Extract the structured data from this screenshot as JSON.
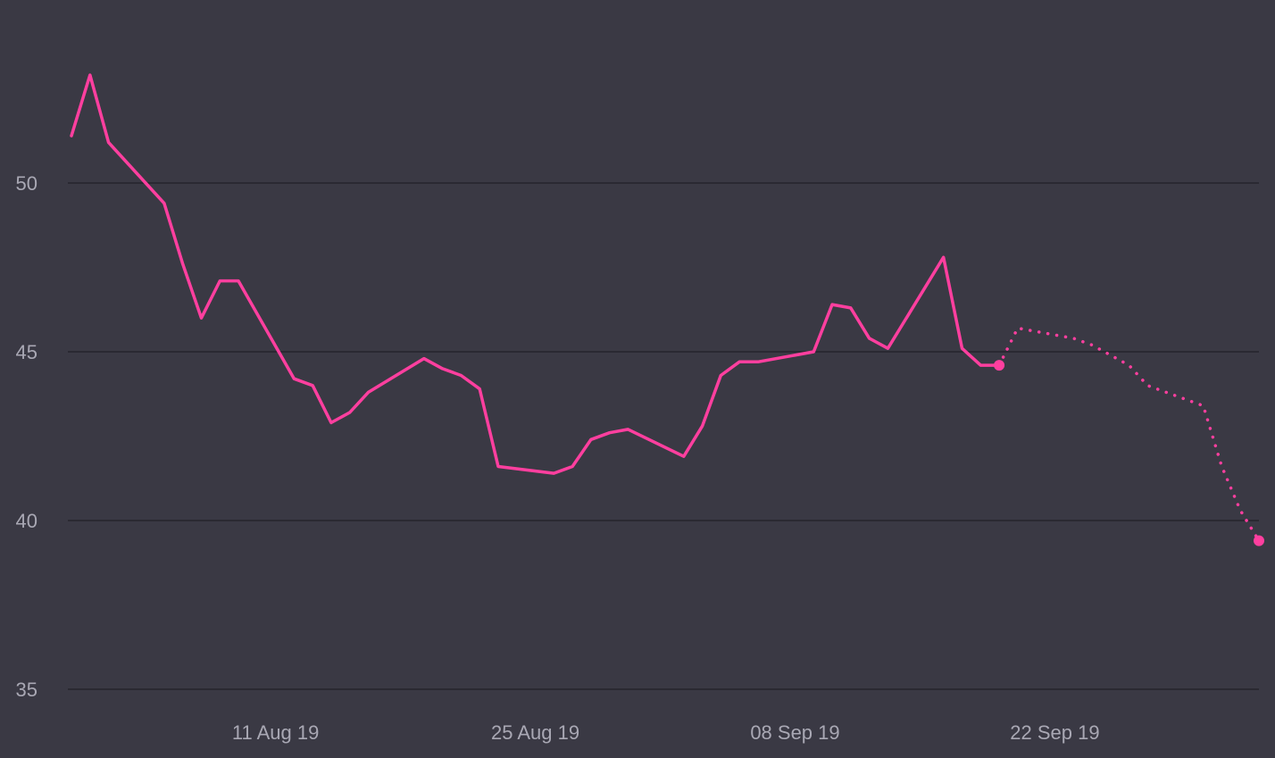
{
  "chart_data": {
    "type": "line",
    "title": "",
    "xlabel": "",
    "ylabel": "",
    "ylim": [
      35,
      55
    ],
    "xlim": [
      "2019-07-31",
      "2019-10-03"
    ],
    "grid": true,
    "legend": "none",
    "yticks": [
      35,
      40,
      45,
      50
    ],
    "xticks": [
      {
        "date": "2019-08-11",
        "label": "11 Aug 19"
      },
      {
        "date": "2019-08-25",
        "label": "25 Aug 19"
      },
      {
        "date": "2019-09-08",
        "label": "08 Sep 19"
      },
      {
        "date": "2019-09-22",
        "label": "22 Sep 19"
      }
    ],
    "colors": {
      "background": "#3a3944",
      "line": "#ff3f9f",
      "grid": "#25242c",
      "ticks": "#a9a8b4"
    },
    "series": [
      {
        "style": "solid",
        "x": [
          "2019-07-31",
          "2019-08-01",
          "2019-08-02",
          "2019-08-05",
          "2019-08-06",
          "2019-08-07",
          "2019-08-08",
          "2019-08-09",
          "2019-08-12",
          "2019-08-13",
          "2019-08-14",
          "2019-08-15",
          "2019-08-16",
          "2019-08-19",
          "2019-08-20",
          "2019-08-21",
          "2019-08-22",
          "2019-08-23",
          "2019-08-26",
          "2019-08-27",
          "2019-08-28",
          "2019-08-29",
          "2019-08-30",
          "2019-09-02",
          "2019-09-03",
          "2019-09-04",
          "2019-09-05",
          "2019-09-06",
          "2019-09-09",
          "2019-09-10",
          "2019-09-11",
          "2019-09-12",
          "2019-09-13",
          "2019-09-16",
          "2019-09-17",
          "2019-09-18",
          "2019-09-19"
        ],
        "values": [
          51.4,
          53.2,
          51.2,
          49.4,
          47.6,
          46.0,
          47.1,
          47.1,
          44.2,
          44.0,
          42.9,
          43.2,
          43.8,
          44.8,
          44.5,
          44.3,
          43.9,
          41.6,
          41.4,
          41.6,
          42.4,
          42.6,
          42.7,
          41.9,
          42.8,
          44.3,
          44.7,
          44.7,
          45.0,
          46.4,
          46.3,
          45.4,
          45.1,
          47.8,
          45.1,
          44.6,
          44.6
        ]
      },
      {
        "style": "dotted",
        "x": [
          "2019-09-19",
          "2019-09-20",
          "2019-09-23",
          "2019-09-24",
          "2019-09-25",
          "2019-09-26",
          "2019-09-27",
          "2019-09-30",
          "2019-10-01",
          "2019-10-02",
          "2019-10-03"
        ],
        "values": [
          44.6,
          45.7,
          45.4,
          45.2,
          44.9,
          44.6,
          44.0,
          43.4,
          41.6,
          40.3,
          39.4
        ]
      }
    ],
    "markers": [
      {
        "x": "2019-09-19",
        "value": 44.6
      },
      {
        "x": "2019-10-03",
        "value": 39.4
      }
    ]
  }
}
